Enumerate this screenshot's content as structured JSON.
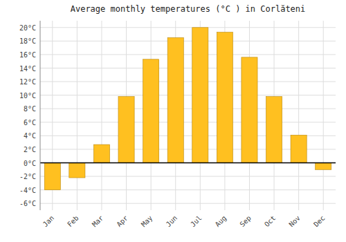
{
  "chart_data": {
    "type": "bar",
    "title": "Average monthly temperatures (°C ) in Corlăteni",
    "categories": [
      "Jan",
      "Feb",
      "Mar",
      "Apr",
      "May",
      "Jun",
      "Jul",
      "Aug",
      "Sep",
      "Oct",
      "Nov",
      "Dec"
    ],
    "values": [
      -4.0,
      -2.2,
      2.7,
      9.8,
      15.3,
      18.5,
      20.0,
      19.3,
      15.6,
      9.8,
      4.1,
      -1.0
    ],
    "color": "#FFC020",
    "ylim": [
      -7,
      21
    ],
    "yticks": [
      {
        "value": -6,
        "label": "-6°C"
      },
      {
        "value": -4,
        "label": "-4°C"
      },
      {
        "value": -2,
        "label": "-2°C"
      },
      {
        "value": 0,
        "label": "0°C"
      },
      {
        "value": 2,
        "label": "2°C"
      },
      {
        "value": 4,
        "label": "4°C"
      },
      {
        "value": 6,
        "label": "6°C"
      },
      {
        "value": 8,
        "label": "8°C"
      },
      {
        "value": 10,
        "label": "10°C"
      },
      {
        "value": 12,
        "label": "12°C"
      },
      {
        "value": 14,
        "label": "14°C"
      },
      {
        "value": 16,
        "label": "16°C"
      },
      {
        "value": 18,
        "label": "18°C"
      },
      {
        "value": 20,
        "label": "20°C"
      }
    ],
    "grid": true
  }
}
